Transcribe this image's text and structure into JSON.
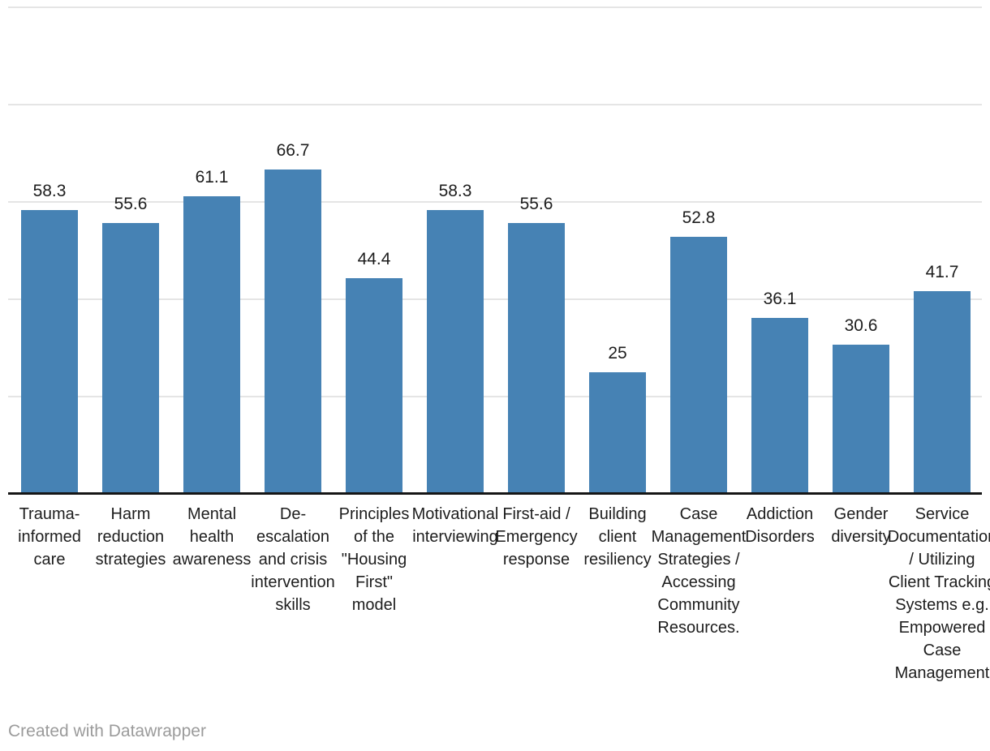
{
  "chart_data": {
    "type": "bar",
    "title": "",
    "categories": [
      "Trauma-informed care",
      "Harm reduction strategies",
      "Mental health awareness",
      "De-escalation and crisis intervention skills",
      "Principles of the \"Housing First\" model",
      "Motivational interviewing",
      "First-aid / Emergency response",
      "Building client resiliency",
      "Case Management Strategies / Accessing Community Resources.",
      "Addiction Disorders",
      "Gender diversity",
      "Service Documentation / Utilizing Client Tracking Systems e.g. Empowered Case Management"
    ],
    "category_display_lines": [
      [
        "Trauma-",
        "informed",
        "care"
      ],
      [
        "Harm",
        "reduction",
        "strategies"
      ],
      [
        "Mental",
        "health",
        "awareness"
      ],
      [
        "De-",
        "escalation",
        "and crisis",
        "intervention",
        "skills"
      ],
      [
        "Principles",
        "of the",
        "\"Housing",
        "First\"",
        "model"
      ],
      [
        "Motivational",
        "interviewing"
      ],
      [
        "First-aid /",
        "Emergency",
        "response"
      ],
      [
        "Building",
        "client",
        "resiliency"
      ],
      [
        "Case",
        "Management",
        "Strategies /",
        "Accessing",
        "Community",
        "Resources."
      ],
      [
        "Addiction",
        "Disorders"
      ],
      [
        "Gender",
        "diversity"
      ],
      [
        "Service",
        "Documentation",
        "/ Utilizing",
        "Client Tracking",
        "Systems e.g.",
        "Empowered",
        "Case",
        "Management"
      ]
    ],
    "values": [
      58.3,
      55.6,
      61.1,
      66.7,
      44.4,
      58.3,
      55.6,
      25,
      52.8,
      36.1,
      30.6,
      41.7
    ],
    "value_labels": [
      "58.3",
      "55.6",
      "61.1",
      "66.7",
      "44.4",
      "58.3",
      "55.6",
      "25",
      "52.8",
      "36.1",
      "30.6",
      "41.7"
    ],
    "xlabel": "",
    "ylabel": "",
    "ylim": [
      0,
      100
    ],
    "gridline_values": [
      20,
      40,
      60,
      80,
      100
    ],
    "grid": true,
    "legend": "none",
    "value_labels_shown": true,
    "y_tick_labels_shown": false
  },
  "colors": {
    "bar": "#4682b4",
    "grid": "#e5e5e5",
    "axis": "#151515",
    "text": "#1d1d1d",
    "credit": "#9b9b9b",
    "background": "#ffffff"
  },
  "footer": {
    "credit": "Created with Datawrapper"
  }
}
